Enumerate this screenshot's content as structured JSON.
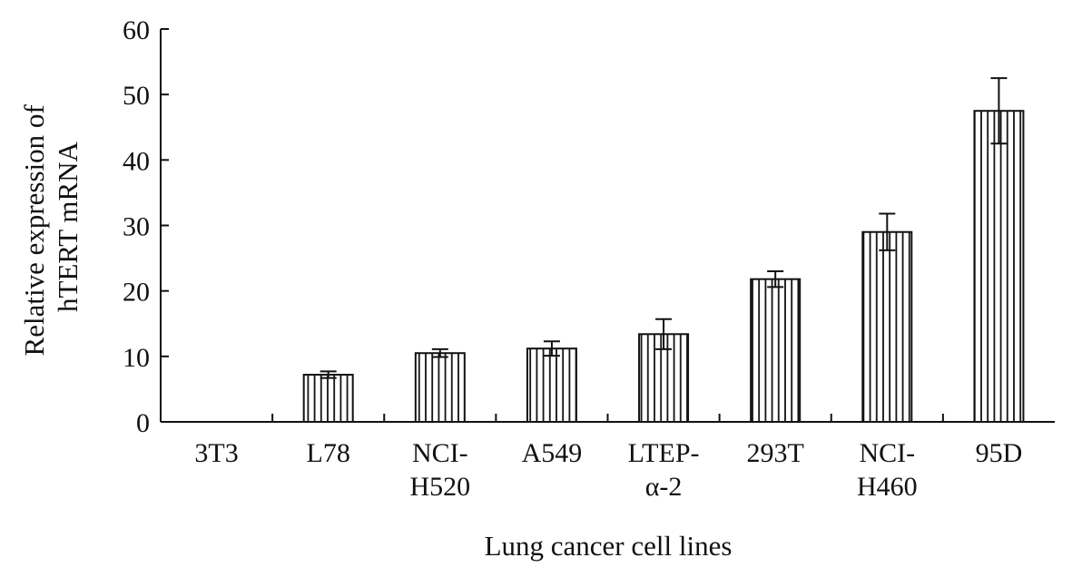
{
  "chart_data": {
    "type": "bar",
    "categories": [
      [
        "3T3"
      ],
      [
        "L78"
      ],
      [
        "NCI-",
        "H520"
      ],
      [
        "A549"
      ],
      [
        "LTEP-",
        "α-2"
      ],
      [
        "293T"
      ],
      [
        "NCI-",
        "H460"
      ],
      [
        "95D"
      ]
    ],
    "values": [
      0,
      7.2,
      10.5,
      11.2,
      13.4,
      21.8,
      29.0,
      47.5
    ],
    "errors": [
      0,
      0.5,
      0.6,
      1.1,
      2.3,
      1.2,
      2.8,
      5.0
    ],
    "ylabel": [
      "Relative expression of",
      "hTERT mRNA"
    ],
    "xlabel": "Lung cancer cell lines",
    "ylim": [
      0,
      60
    ],
    "yticks": [
      "0",
      "10",
      "20",
      "30",
      "40",
      "50",
      "60"
    ],
    "pattern": "vertical-stripes",
    "bar_color": "#111111",
    "background": "#ffffff",
    "grid": false
  }
}
